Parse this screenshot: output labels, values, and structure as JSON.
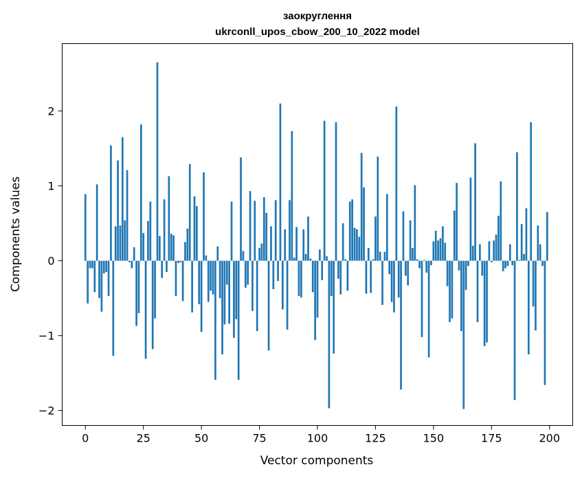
{
  "chart_data": {
    "type": "bar",
    "title": [
      "заокруглення",
      "ukrconll_upos_cbow_200_10_2022 model"
    ],
    "xlabel": "Vector components",
    "ylabel": "Components values",
    "xlim": [
      -10,
      210
    ],
    "ylim": [
      -2.2,
      2.9
    ],
    "xticks": [
      0,
      25,
      50,
      75,
      100,
      125,
      150,
      175,
      200
    ],
    "yticks": [
      -2,
      -1,
      0,
      1,
      2
    ],
    "ytick_labels": [
      "−2",
      "−1",
      "0",
      "1",
      "2"
    ],
    "grid": false,
    "bar_color": "#1f77b4",
    "x": [
      0,
      1,
      2,
      3,
      4,
      5,
      6,
      7,
      8,
      9,
      10,
      11,
      12,
      13,
      14,
      15,
      16,
      17,
      18,
      19,
      20,
      21,
      22,
      23,
      24,
      25,
      26,
      27,
      28,
      29,
      30,
      31,
      32,
      33,
      34,
      35,
      36,
      37,
      38,
      39,
      40,
      41,
      42,
      43,
      44,
      45,
      46,
      47,
      48,
      49,
      50,
      51,
      52,
      53,
      54,
      55,
      56,
      57,
      58,
      59,
      60,
      61,
      62,
      63,
      64,
      65,
      66,
      67,
      68,
      69,
      70,
      71,
      72,
      73,
      74,
      75,
      76,
      77,
      78,
      79,
      80,
      81,
      82,
      83,
      84,
      85,
      86,
      87,
      88,
      89,
      90,
      91,
      92,
      93,
      94,
      95,
      96,
      97,
      98,
      99,
      100,
      101,
      102,
      103,
      104,
      105,
      106,
      107,
      108,
      109,
      110,
      111,
      112,
      113,
      114,
      115,
      116,
      117,
      118,
      119,
      120,
      121,
      122,
      123,
      124,
      125,
      126,
      127,
      128,
      129,
      130,
      131,
      132,
      133,
      134,
      135,
      136,
      137,
      138,
      139,
      140,
      141,
      142,
      143,
      144,
      145,
      146,
      147,
      148,
      149,
      150,
      151,
      152,
      153,
      154,
      155,
      156,
      157,
      158,
      159,
      160,
      161,
      162,
      163,
      164,
      165,
      166,
      167,
      168,
      169,
      170,
      171,
      172,
      173,
      174,
      175,
      176,
      177,
      178,
      179,
      180,
      181,
      182,
      183,
      184,
      185,
      186,
      187,
      188,
      189,
      190,
      191,
      192,
      193,
      194,
      195,
      196,
      197,
      198,
      199
    ],
    "values": [
      0.89,
      -0.57,
      -0.1,
      -0.1,
      -0.42,
      1.02,
      -0.5,
      -0.68,
      -0.17,
      -0.15,
      -0.47,
      1.54,
      -1.27,
      0.46,
      1.34,
      0.47,
      1.65,
      0.54,
      1.21,
      -0.02,
      -0.1,
      0.18,
      -0.87,
      -0.7,
      1.82,
      0.37,
      -1.31,
      0.53,
      0.79,
      -1.18,
      -0.77,
      2.65,
      0.33,
      -0.23,
      0.82,
      -0.15,
      1.13,
      0.36,
      0.34,
      -0.47,
      -0.03,
      -0.02,
      -0.54,
      0.25,
      0.43,
      1.29,
      -0.69,
      0.86,
      0.73,
      -0.58,
      -0.95,
      1.18,
      0.07,
      -0.55,
      -0.4,
      -0.45,
      -1.59,
      0.19,
      -0.5,
      -1.25,
      -0.85,
      -0.32,
      -0.84,
      0.79,
      -1.03,
      -0.78,
      -1.59,
      1.38,
      0.13,
      -0.36,
      -0.32,
      0.93,
      -0.67,
      0.8,
      -0.94,
      0.17,
      0.23,
      0.85,
      0.64,
      -1.2,
      0.46,
      -0.38,
      0.81,
      -0.27,
      2.1,
      -0.65,
      0.42,
      -0.92,
      0.81,
      1.73,
      0.04,
      0.45,
      -0.47,
      -0.49,
      0.42,
      0.09,
      0.59,
      0.03,
      -0.42,
      -1.06,
      -0.76,
      0.15,
      -0.26,
      1.87,
      0.06,
      -1.97,
      -0.47,
      -1.24,
      1.85,
      -0.24,
      -0.45,
      0.5,
      0.02,
      -0.4,
      0.79,
      0.82,
      0.44,
      0.42,
      0.32,
      1.44,
      0.98,
      -0.44,
      0.17,
      -0.43,
      0.02,
      0.59,
      1.39,
      0.12,
      -0.59,
      0.12,
      0.89,
      -0.18,
      -0.55,
      -0.69,
      2.06,
      -0.49,
      -1.72,
      0.66,
      -0.2,
      -0.33,
      0.54,
      0.17,
      1.01,
      0.02,
      -0.1,
      -1.02,
      0.01,
      -0.16,
      -1.29,
      -0.06,
      0.26,
      0.4,
      0.27,
      0.3,
      0.46,
      0.24,
      -0.34,
      -0.82,
      -0.77,
      0.67,
      1.04,
      -0.13,
      -0.94,
      -1.98,
      -0.39,
      -0.07,
      1.11,
      0.2,
      1.57,
      -0.82,
      0.22,
      -0.2,
      -1.14,
      -1.09,
      0.26,
      -0.02,
      0.27,
      0.35,
      0.6,
      1.06,
      -0.14,
      -0.1,
      -0.07,
      0.22,
      -0.06,
      -1.86,
      1.45,
      0.01,
      0.49,
      0.09,
      0.7,
      -1.25,
      1.85,
      -0.61,
      -0.93,
      0.47,
      0.22,
      -0.07,
      -1.66,
      0.65
    ]
  }
}
